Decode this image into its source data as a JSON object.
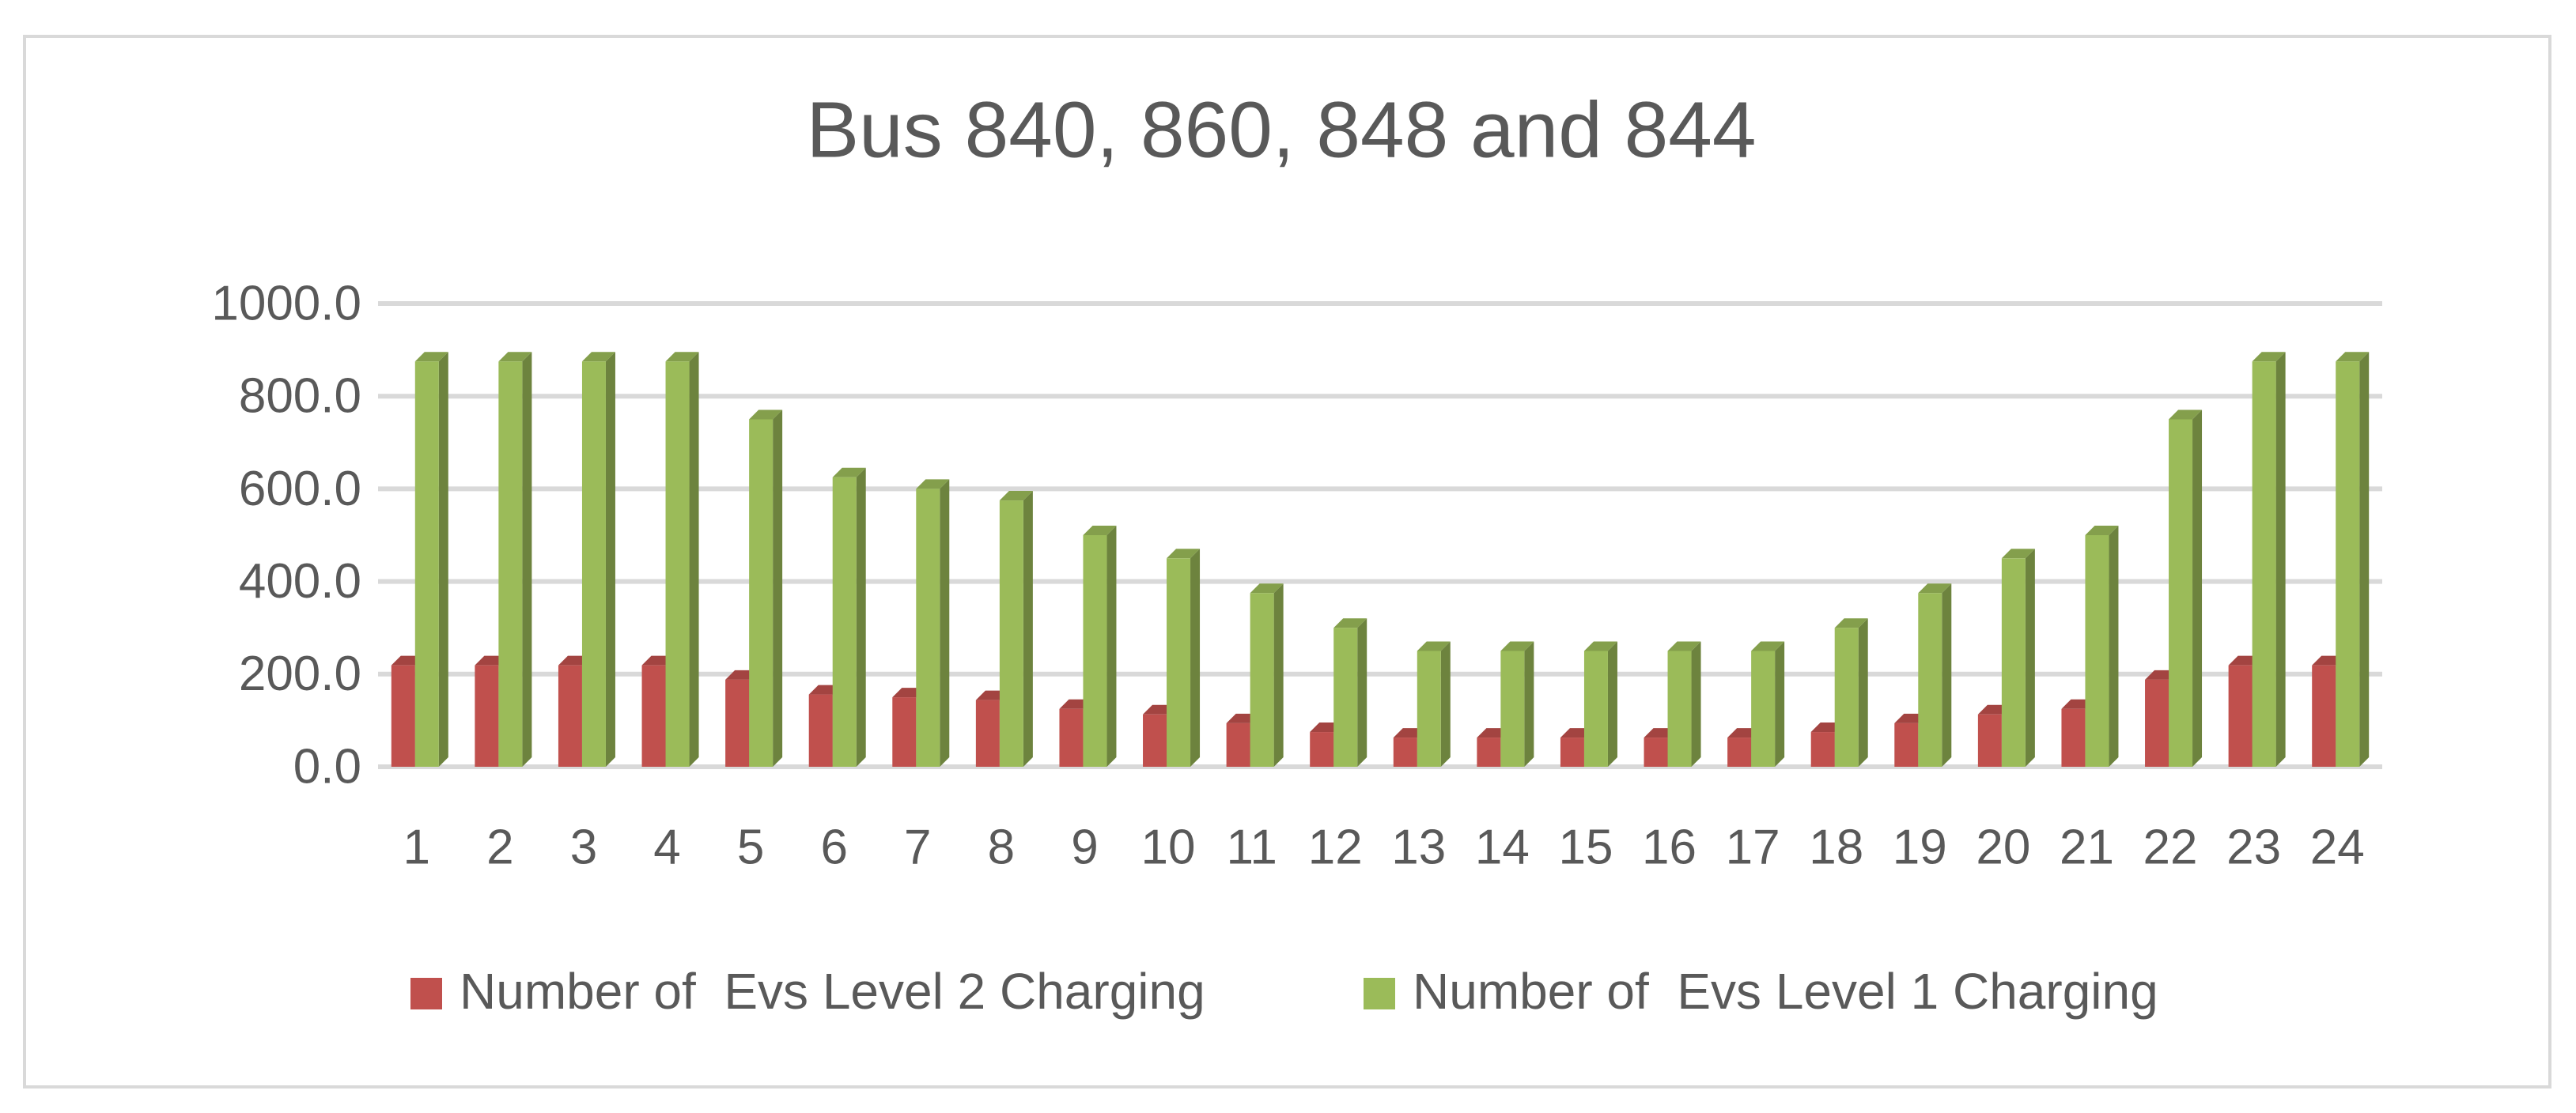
{
  "chart_data": {
    "type": "bar",
    "title": "Bus 840, 860, 848 and 844",
    "categories": [
      "1",
      "2",
      "3",
      "4",
      "5",
      "6",
      "7",
      "8",
      "9",
      "10",
      "11",
      "12",
      "13",
      "14",
      "15",
      "16",
      "17",
      "18",
      "19",
      "20",
      "21",
      "22",
      "23",
      "24"
    ],
    "series": [
      {
        "name": "Number of  Evs Level 2 Charging",
        "color": "#c0504d",
        "values": [
          219,
          219,
          219,
          219,
          188,
          156,
          150,
          144,
          125,
          113,
          94,
          75,
          63,
          63,
          63,
          63,
          63,
          75,
          94,
          113,
          125,
          188,
          219,
          219
        ]
      },
      {
        "name": "Number of  Evs Level 1 Charging",
        "color": "#9bbb59",
        "values": [
          875,
          875,
          875,
          875,
          750,
          625,
          600,
          575,
          500,
          450,
          375,
          300,
          250,
          250,
          250,
          250,
          250,
          300,
          375,
          450,
          500,
          750,
          875,
          875
        ]
      }
    ],
    "ylim": [
      0,
      1000
    ],
    "yticks": [
      {
        "value": 0,
        "label": "0.0"
      },
      {
        "value": 200,
        "label": "200.0"
      },
      {
        "value": 400,
        "label": "400.0"
      },
      {
        "value": 600,
        "label": "600.0"
      },
      {
        "value": 800,
        "label": "800.0"
      },
      {
        "value": 1000,
        "label": "1000.0"
      }
    ],
    "grid": true,
    "legend": "bottom"
  }
}
